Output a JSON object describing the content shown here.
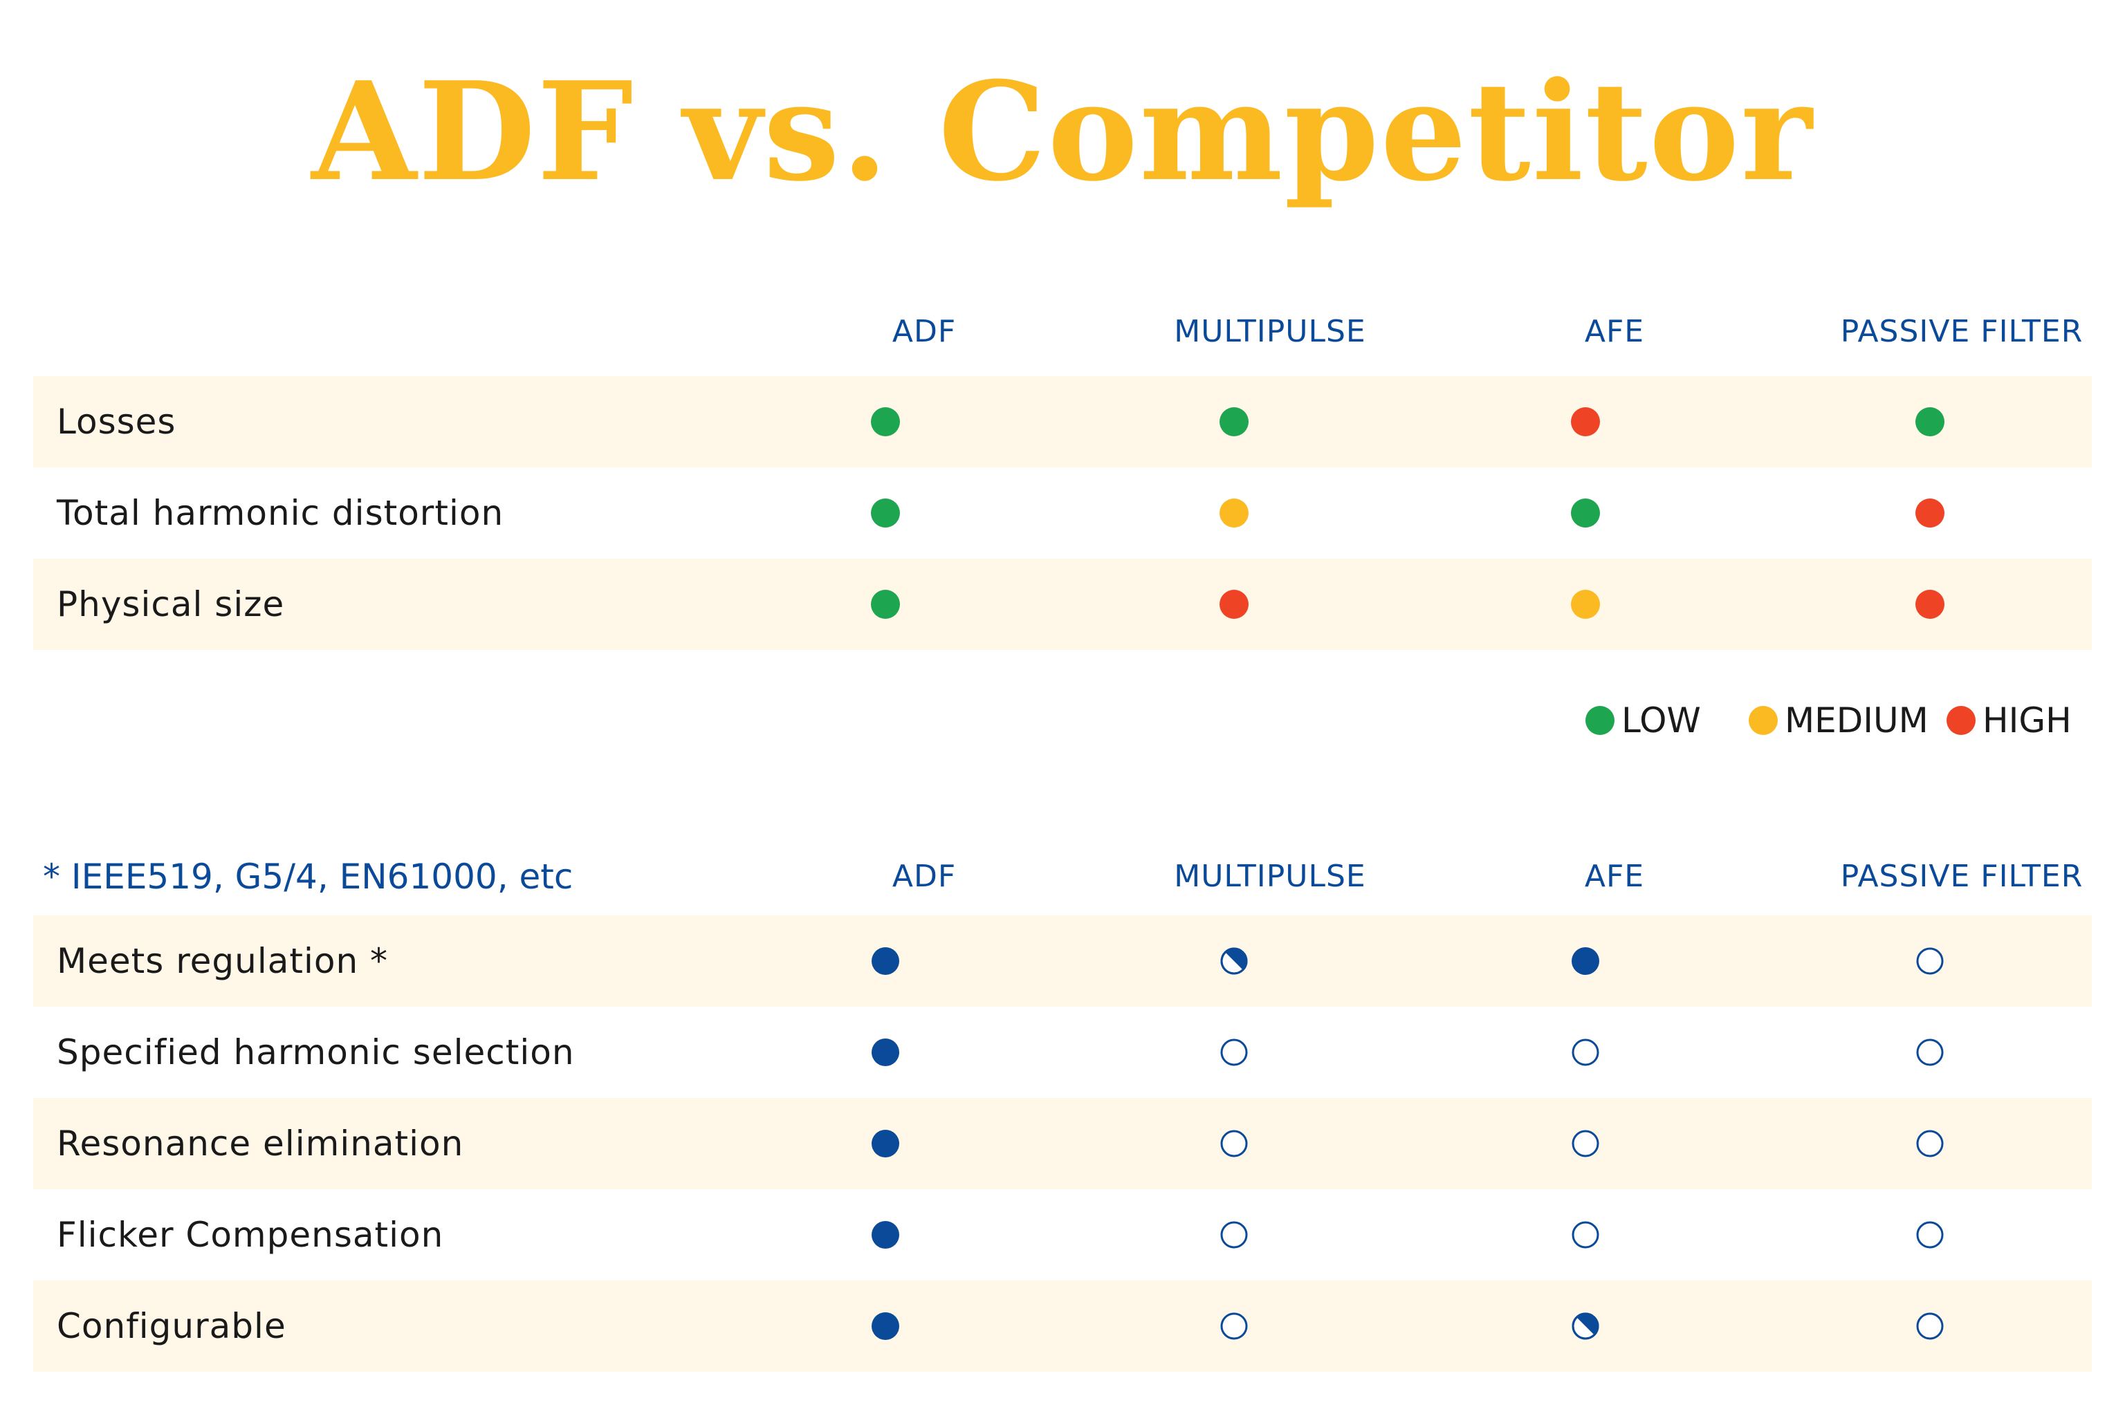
{
  "title": "ADF vs. Competitor",
  "columns": [
    "ADF",
    "MULTIPULSE",
    "AFE",
    "PASSIVE FILTER"
  ],
  "colors": {
    "title": "#FBBA22",
    "header": "#0B4A99",
    "low": "#1EA550",
    "medium": "#FBBA22",
    "high": "#EF4325",
    "mark": "#0B4A99",
    "row_shade": "#FFF7E7"
  },
  "section1": {
    "rows": [
      {
        "label": "Losses",
        "values": [
          "low",
          "low",
          "high",
          "low"
        ]
      },
      {
        "label": "Total harmonic distortion",
        "values": [
          "low",
          "medium",
          "low",
          "high"
        ]
      },
      {
        "label": "Physical size",
        "values": [
          "low",
          "high",
          "medium",
          "high"
        ]
      }
    ]
  },
  "legend": [
    {
      "level": "low",
      "label": "LOW"
    },
    {
      "level": "medium",
      "label": "MEDIUM"
    },
    {
      "level": "high",
      "label": "HIGH"
    }
  ],
  "section2": {
    "footnote": "* IEEE519, G5/4, EN61000, etc",
    "rows": [
      {
        "label": "Meets regulation *",
        "values": [
          "full",
          "partial",
          "full",
          "empty"
        ]
      },
      {
        "label": "Specified harmonic selection",
        "values": [
          "full",
          "empty",
          "empty",
          "empty"
        ]
      },
      {
        "label": "Resonance elimination",
        "values": [
          "full",
          "empty",
          "empty",
          "empty"
        ]
      },
      {
        "label": "Flicker Compensation",
        "values": [
          "full",
          "empty",
          "empty",
          "empty"
        ]
      },
      {
        "label": "Configurable",
        "values": [
          "full",
          "empty",
          "partial",
          "empty"
        ]
      }
    ]
  }
}
